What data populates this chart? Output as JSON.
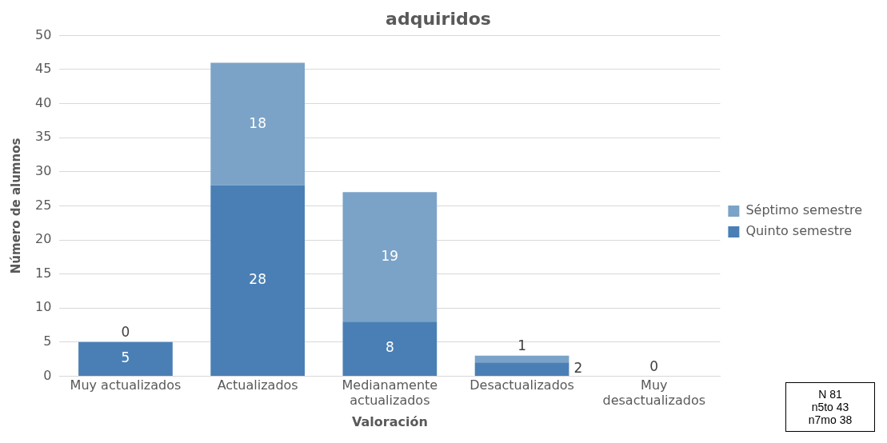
{
  "chart_data": {
    "type": "bar",
    "title": "adquiridos",
    "xlabel": "Valoración",
    "ylabel": "Número de alumnos",
    "categories": [
      "Muy actualizados",
      "Actualizados",
      "Medianamente actualizados",
      "Desactualizados",
      "Muy desactualizados"
    ],
    "stacked": true,
    "series": [
      {
        "name": "Quinto semestre",
        "color": "#4a7fb5",
        "values": [
          5,
          28,
          8,
          2,
          0
        ],
        "value_labels": [
          "5",
          "28",
          "8",
          "2",
          "0"
        ]
      },
      {
        "name": "Séptimo semestre",
        "color": "#7ba3c8",
        "values": [
          0,
          18,
          19,
          1,
          0
        ],
        "value_labels": [
          "0",
          "18",
          "19",
          "1",
          null
        ]
      }
    ],
    "ylim": [
      0,
      50
    ],
    "yticks": [
      0,
      5,
      10,
      15,
      20,
      25,
      30,
      35,
      40,
      45,
      50
    ],
    "grid": "y",
    "legend": "right",
    "annotations": [
      "N 81",
      "n5to 43",
      "n7mo 38"
    ]
  }
}
